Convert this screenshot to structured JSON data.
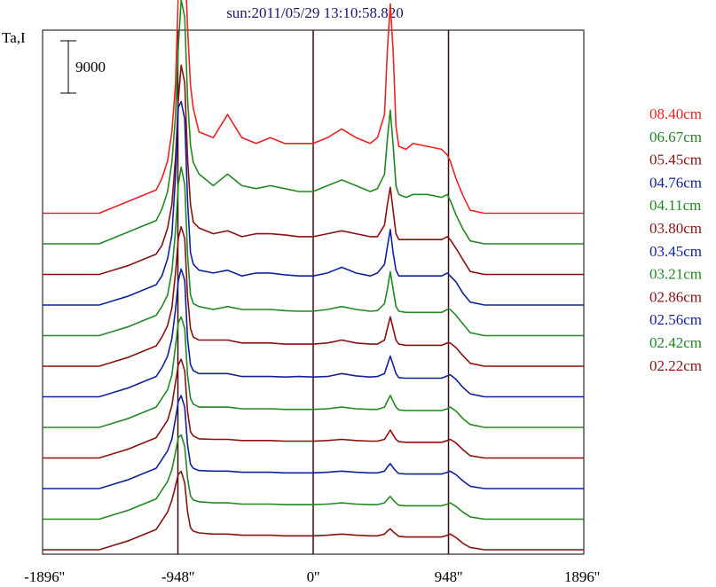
{
  "chart_data": {
    "type": "line",
    "title": "sun:2011/05/29 13:10:58.820",
    "ylabel": "Ta,I",
    "scale_bar_label": "9000",
    "scale_bar_value": 9000,
    "x_ticks": [
      {
        "value": -1896,
        "label": "-1896''"
      },
      {
        "value": -948,
        "label": "-948''"
      },
      {
        "value": 0,
        "label": "0''"
      },
      {
        "value": 948,
        "label": "948''"
      },
      {
        "value": 1896,
        "label": "1896''"
      }
    ],
    "xlim": [
      -1896,
      1896
    ],
    "vertical_lines_at": [
      -948,
      0,
      948
    ],
    "profile_x": [
      -1896,
      -1500,
      -1300,
      -1200,
      -1100,
      -1060,
      -1020,
      -990,
      -965,
      -945,
      -925,
      -900,
      -880,
      -860,
      -840,
      -800,
      -700,
      -600,
      -500,
      -400,
      -300,
      -200,
      -100,
      0,
      100,
      200,
      300,
      400,
      450,
      500,
      520,
      540,
      560,
      580,
      600,
      650,
      700,
      800,
      900,
      940,
      960,
      1000,
      1050,
      1100,
      1200,
      1400,
      1600,
      1896
    ],
    "series": [
      {
        "name": "08.40cm",
        "color": "#ee2222",
        "values": [
          0,
          0,
          2000,
          3000,
          4000,
          6000,
          9000,
          14000,
          22000,
          38000,
          48000,
          44000,
          32000,
          22000,
          18000,
          14000,
          13000,
          17000,
          13000,
          12000,
          13000,
          12000,
          12000,
          12000,
          13000,
          14500,
          13000,
          12000,
          13000,
          17000,
          28000,
          36000,
          28000,
          15000,
          11500,
          11000,
          12000,
          11500,
          11000,
          10000,
          9000,
          6000,
          3000,
          500,
          0,
          0,
          0,
          0
        ]
      },
      {
        "name": "06.67cm",
        "color": "#228822",
        "values": [
          0,
          0,
          2000,
          3000,
          4000,
          6000,
          9000,
          14000,
          22000,
          34000,
          42000,
          39000,
          25000,
          17000,
          14000,
          12000,
          10000,
          12000,
          10000,
          9500,
          10000,
          9500,
          9000,
          9000,
          10000,
          11000,
          10000,
          9000,
          9500,
          12000,
          18000,
          23000,
          17000,
          10000,
          8500,
          8000,
          8500,
          8500,
          8000,
          8500,
          7500,
          5000,
          2500,
          500,
          0,
          0,
          0,
          0
        ]
      },
      {
        "name": "05.45cm",
        "color": "#881111",
        "values": [
          0,
          0,
          1500,
          2500,
          3500,
          5000,
          8000,
          12000,
          20000,
          30000,
          36000,
          33000,
          20000,
          12000,
          9000,
          8000,
          7000,
          7500,
          6500,
          7000,
          7000,
          6800,
          6500,
          6500,
          7000,
          7500,
          7000,
          6500,
          6500,
          8500,
          12000,
          15000,
          11000,
          7000,
          6000,
          6000,
          6000,
          6000,
          6000,
          6500,
          6000,
          4500,
          2500,
          500,
          0,
          0,
          0,
          0
        ]
      },
      {
        "name": "04.76cm",
        "color": "#112299",
        "values": [
          0,
          0,
          1500,
          2500,
          3500,
          5000,
          8000,
          12000,
          22000,
          34000,
          35000,
          32000,
          18000,
          9000,
          7000,
          6000,
          5500,
          6000,
          5000,
          5500,
          5500,
          5200,
          5000,
          5000,
          5500,
          6500,
          5500,
          5000,
          5500,
          7000,
          10000,
          13000,
          9000,
          6000,
          5000,
          5000,
          5000,
          5000,
          5000,
          5500,
          5000,
          4000,
          2000,
          500,
          0,
          0,
          0,
          0
        ]
      },
      {
        "name": "04.11cm",
        "color": "#228822",
        "values": [
          0,
          0,
          1500,
          2500,
          3500,
          5000,
          7000,
          11000,
          18000,
          26000,
          29000,
          26000,
          14000,
          7000,
          5500,
          5000,
          4500,
          5000,
          4500,
          4500,
          4500,
          4300,
          4200,
          4200,
          4500,
          5000,
          4500,
          4200,
          4300,
          5500,
          8000,
          11000,
          8000,
          5000,
          4200,
          4000,
          4000,
          4000,
          4000,
          4500,
          4500,
          3500,
          2000,
          500,
          0,
          0,
          0,
          0
        ]
      },
      {
        "name": "03.80cm",
        "color": "#881111",
        "values": [
          0,
          0,
          1500,
          2500,
          3500,
          5000,
          7000,
          10000,
          16000,
          22000,
          24000,
          22000,
          12000,
          6500,
          5000,
          4500,
          4500,
          4500,
          4000,
          4000,
          4000,
          3800,
          3800,
          3800,
          4000,
          4500,
          4000,
          3800,
          3800,
          4500,
          6500,
          8500,
          6500,
          4500,
          3800,
          3600,
          3600,
          3600,
          3600,
          4000,
          4000,
          3200,
          1800,
          500,
          0,
          0,
          0,
          0
        ]
      },
      {
        "name": "03.45cm",
        "color": "#112299",
        "values": [
          0,
          0,
          1500,
          2500,
          3500,
          5000,
          7000,
          10000,
          15000,
          20000,
          22000,
          20000,
          10000,
          5500,
          4500,
          4000,
          4000,
          4000,
          3500,
          3500,
          3500,
          3400,
          3500,
          3400,
          3500,
          4000,
          3600,
          3400,
          3500,
          4000,
          5500,
          7000,
          5500,
          4000,
          3300,
          3200,
          3200,
          3200,
          3200,
          3600,
          3800,
          3000,
          1600,
          500,
          0,
          0,
          0,
          0
        ]
      },
      {
        "name": "03.21cm",
        "color": "#228822",
        "values": [
          0,
          0,
          1500,
          2500,
          3500,
          5000,
          6500,
          9000,
          14000,
          18000,
          19000,
          17000,
          9000,
          5000,
          4000,
          3500,
          3500,
          3500,
          3200,
          3200,
          3200,
          3100,
          3100,
          3100,
          3200,
          3500,
          3200,
          3100,
          3100,
          3500,
          4500,
          5500,
          4500,
          3500,
          3000,
          2900,
          2900,
          2900,
          2900,
          3200,
          3500,
          2800,
          1500,
          500,
          0,
          0,
          0,
          0
        ]
      },
      {
        "name": "02.86cm",
        "color": "#881111",
        "values": [
          0,
          0,
          1500,
          2500,
          3500,
          5000,
          6500,
          9000,
          13000,
          16000,
          17000,
          15000,
          8000,
          4500,
          3800,
          3300,
          3200,
          3200,
          3000,
          3000,
          3000,
          2900,
          2900,
          2900,
          3000,
          3200,
          3000,
          2900,
          2900,
          3200,
          4000,
          4800,
          4000,
          3200,
          2800,
          2700,
          2700,
          2700,
          2700,
          3000,
          3200,
          2600,
          1400,
          400,
          0,
          0,
          0,
          0
        ]
      },
      {
        "name": "02.56cm",
        "color": "#112299",
        "values": [
          0,
          0,
          1500,
          2500,
          3500,
          5000,
          6500,
          8500,
          12000,
          15000,
          16000,
          14000,
          7500,
          4200,
          3500,
          3100,
          3000,
          3000,
          2800,
          2800,
          2800,
          2700,
          2700,
          2700,
          2800,
          3000,
          2800,
          2700,
          2700,
          3000,
          3700,
          4300,
          3600,
          3000,
          2600,
          2500,
          2500,
          2500,
          2500,
          2800,
          3000,
          2400,
          1300,
          400,
          0,
          0,
          0,
          0
        ]
      },
      {
        "name": "02.42cm",
        "color": "#228822",
        "values": [
          0,
          0,
          1500,
          2500,
          3500,
          5000,
          6500,
          8500,
          11500,
          14000,
          14500,
          12500,
          7000,
          4000,
          3300,
          3000,
          2800,
          2800,
          2600,
          2600,
          2600,
          2500,
          2500,
          2500,
          2600,
          2800,
          2600,
          2500,
          2500,
          2800,
          3400,
          3900,
          3300,
          2800,
          2400,
          2300,
          2300,
          2300,
          2300,
          2600,
          2800,
          2200,
          1200,
          400,
          0,
          0,
          0,
          0
        ]
      },
      {
        "name": "02.22cm",
        "color": "#881111",
        "values": [
          0,
          0,
          1500,
          2500,
          3500,
          5000,
          6500,
          8500,
          11000,
          13000,
          13500,
          11500,
          6500,
          3800,
          3200,
          2900,
          2700,
          2700,
          2500,
          2500,
          2500,
          2400,
          2400,
          2400,
          2500,
          2700,
          2500,
          2400,
          2400,
          2700,
          3200,
          3600,
          3100,
          2700,
          2300,
          2200,
          2200,
          2200,
          2200,
          2500,
          2700,
          2100,
          1100,
          400,
          0,
          0,
          0,
          0
        ]
      }
    ]
  }
}
